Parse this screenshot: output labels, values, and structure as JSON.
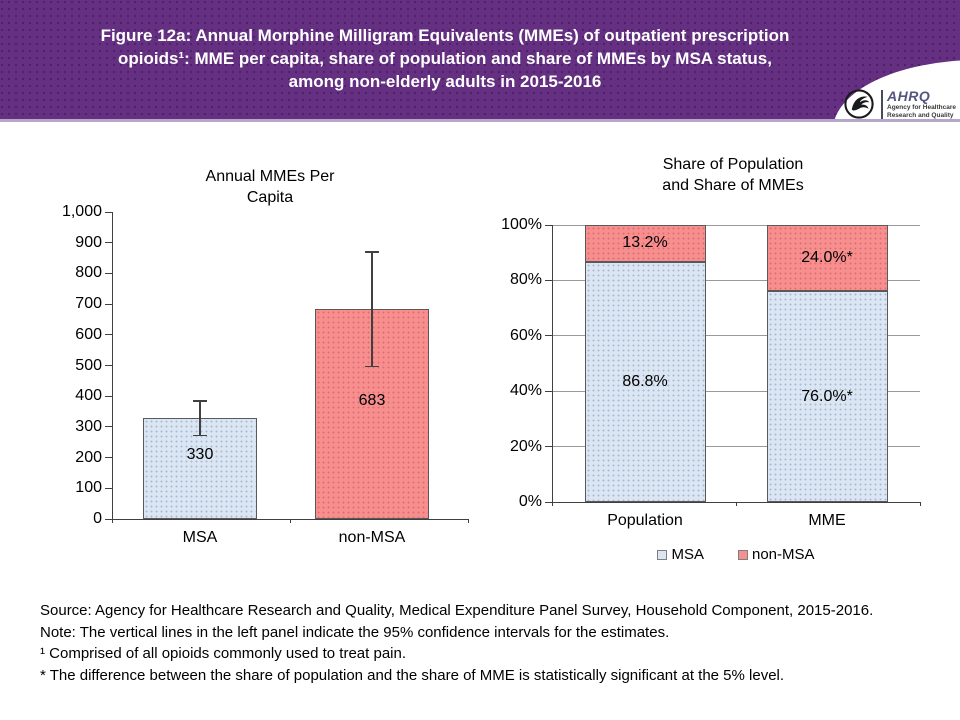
{
  "header": {
    "title_lines": [
      "Figure 12a: Annual Morphine Milligram Equivalents (MMEs) of outpatient prescription",
      "opioids¹: MME per capita, share of population and share of MMEs by MSA status,",
      "among non-elderly adults in 2015-2016"
    ],
    "bg_color": "#653082",
    "logo": {
      "org": "AHRQ",
      "tagline_line1": "Agency for Healthcare",
      "tagline_line2": "Research and Quality"
    }
  },
  "chart_data": [
    {
      "type": "bar",
      "title": "Annual MMEs Per Capita",
      "title_lines": [
        "Annual MMEs Per",
        "Capita"
      ],
      "categories": [
        "MSA",
        "non-MSA"
      ],
      "values": [
        330,
        683
      ],
      "value_labels": [
        "330",
        "683"
      ],
      "ci_low": [
        272,
        497
      ],
      "ci_high": [
        385,
        870
      ],
      "ylim": [
        0,
        1000
      ],
      "ytick_interval": 100,
      "grid": false,
      "bar_colors": [
        "#dce6f2",
        "#f78f8f"
      ],
      "note": "error bars show 95% confidence intervals"
    },
    {
      "type": "stacked-bar",
      "title": "Share of Population and Share of MMEs",
      "title_lines": [
        "Share of Population",
        "and Share of MMEs"
      ],
      "categories": [
        "Population",
        "MME"
      ],
      "series": [
        {
          "name": "MSA",
          "values": [
            86.8,
            76.0
          ],
          "labels": [
            "86.8%",
            "76.0%*"
          ],
          "color": "#dce6f2"
        },
        {
          "name": "non-MSA",
          "values": [
            13.2,
            24.0
          ],
          "labels": [
            "13.2%",
            "24.0%*"
          ],
          "color": "#f78f8f"
        }
      ],
      "ylim": [
        0,
        100
      ],
      "ytick_interval": 20,
      "ytick_suffix": "%",
      "grid": true,
      "legend": [
        "MSA",
        "non-MSA"
      ],
      "legend_position": "bottom"
    }
  ],
  "footer": {
    "lines": [
      "Source: Agency for Healthcare Research and Quality, Medical Expenditure Panel Survey, Household Component, 2015-2016.",
      "Note: The vertical lines in the left panel indicate the 95% confidence intervals for the estimates.",
      "¹ Comprised of all opioids commonly used to treat pain.",
      "* The difference between the share of population and the share of MME is statistically significant at the 5% level."
    ]
  }
}
